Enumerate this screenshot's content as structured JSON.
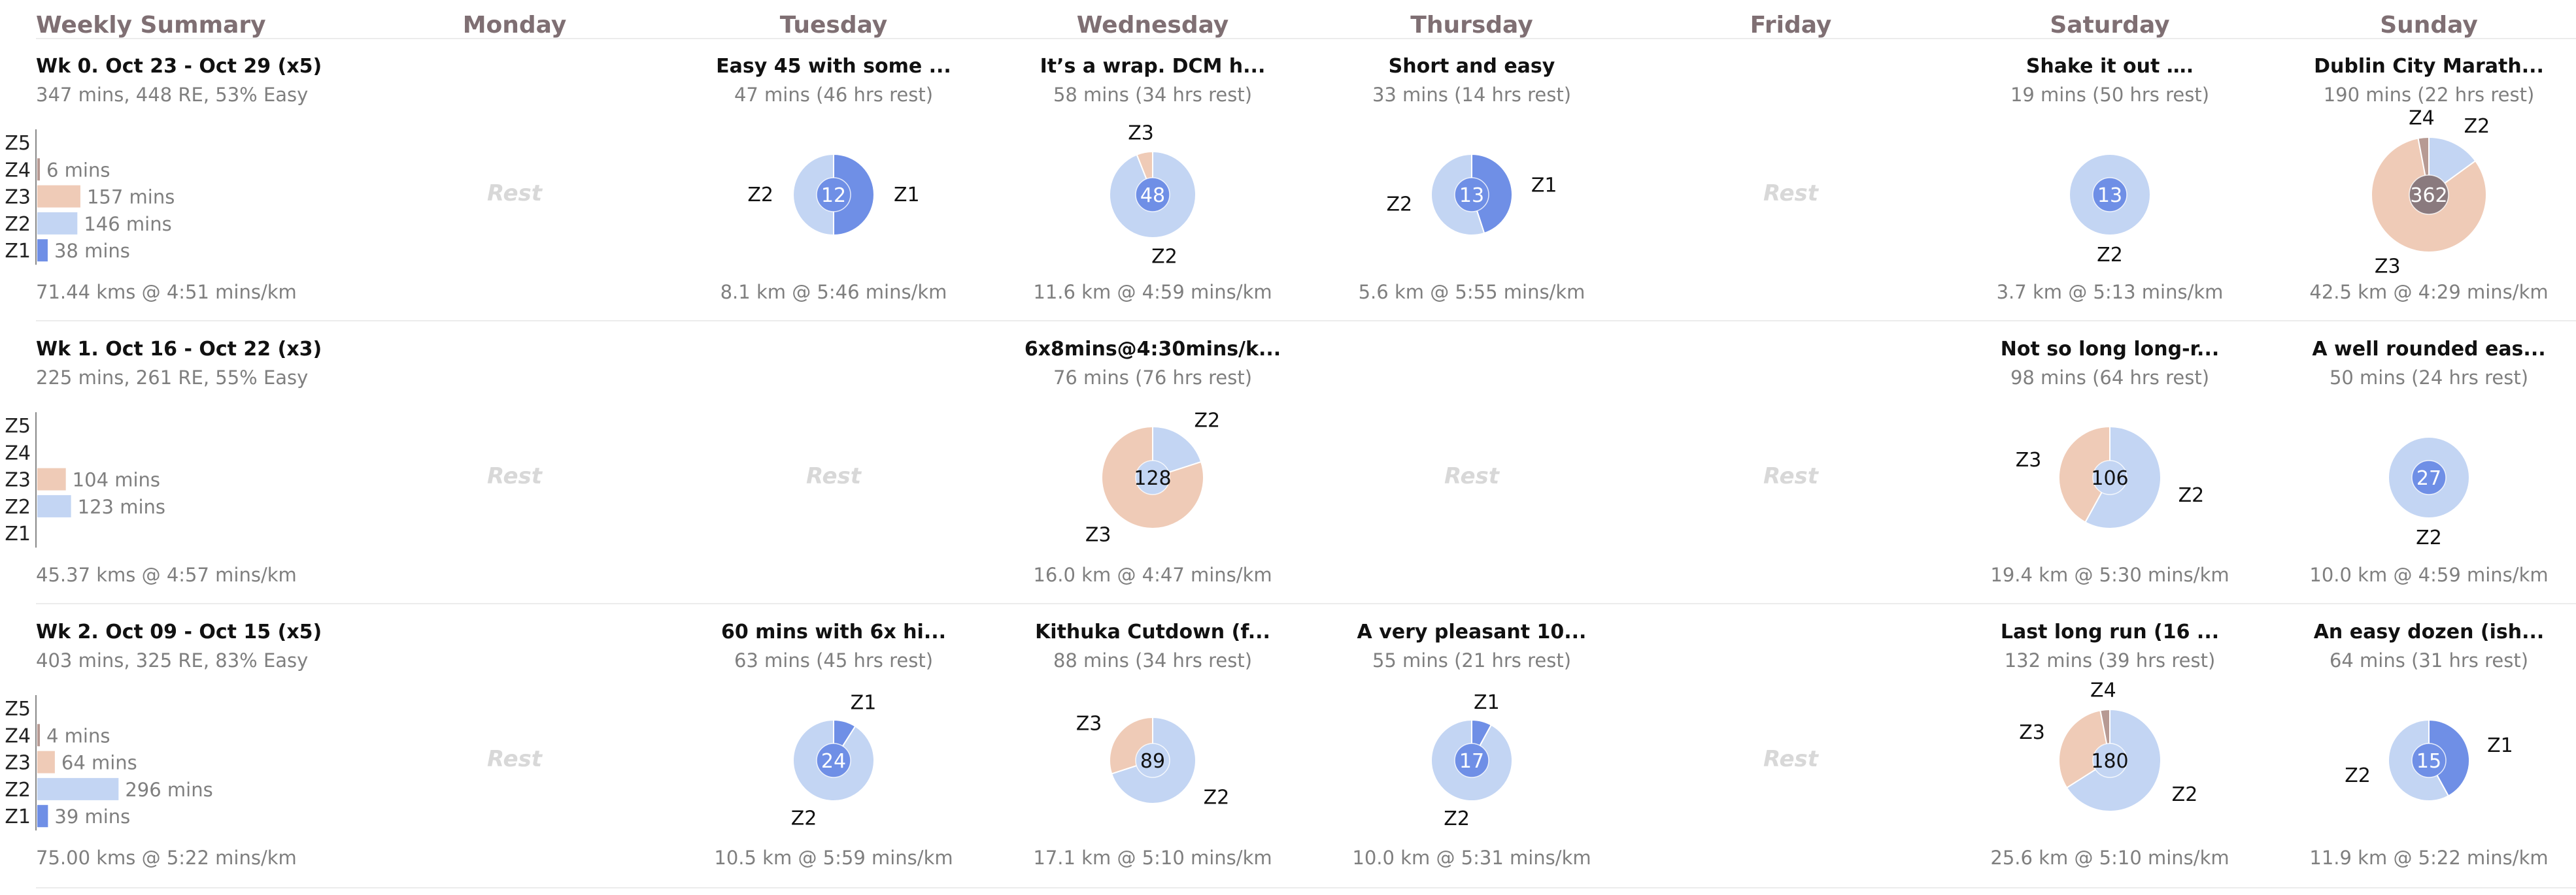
{
  "header": {
    "summary": "Weekly Summary",
    "days": [
      "Monday",
      "Tuesday",
      "Wednesday",
      "Thursday",
      "Friday",
      "Saturday",
      "Sunday"
    ]
  },
  "rest_label": "Rest",
  "zone_colors": {
    "Z1": "#6f8fe6",
    "Z2": "#c3d5f3",
    "Z3": "#efcbb7",
    "Z4": "#b79a93",
    "Z5": "#8a7a7e"
  },
  "chart_data": {
    "type": "pie",
    "weeks": [
      {
        "summary": {
          "title": "Wk 0. Oct 23 - Oct 29 (x5)",
          "subtitle": "347 mins, 448 RE, 53% Easy",
          "footer": "71.44 kms @ 4:51 mins/km",
          "zones": [
            {
              "zone": "Z5",
              "mins": null,
              "label": ""
            },
            {
              "zone": "Z4",
              "mins": 6,
              "label": "6 mins"
            },
            {
              "zone": "Z3",
              "mins": 157,
              "label": "157 mins"
            },
            {
              "zone": "Z2",
              "mins": 146,
              "label": "146 mins"
            },
            {
              "zone": "Z1",
              "mins": 38,
              "label": "38 mins"
            }
          ]
        },
        "days": [
          {
            "rest": true
          },
          {
            "rest": false,
            "title": "Easy 45 with some ...",
            "subtitle": "47 mins (46 hrs rest)",
            "footer": "8.1 km @ 5:46 mins/km",
            "center": "12",
            "center_color": "#6f8fe6",
            "slices": [
              {
                "zone": "Z1",
                "value": 0.5,
                "label": "Z1"
              },
              {
                "zone": "Z2",
                "value": 0.5,
                "label": "Z2"
              }
            ]
          },
          {
            "rest": false,
            "title": "It’s a wrap. DCM h...",
            "subtitle": "58 mins (34 hrs rest)",
            "footer": "11.6 km @ 4:59 mins/km",
            "center": "48",
            "center_color": "#6f8fe6",
            "slices": [
              {
                "zone": "Z2",
                "value": 0.94,
                "label": "Z2"
              },
              {
                "zone": "Z3",
                "value": 0.06,
                "label": "Z3"
              }
            ]
          },
          {
            "rest": false,
            "title": "Short and easy",
            "subtitle": "33 mins (14 hrs rest)",
            "footer": "5.6 km @ 5:55 mins/km",
            "center": "13",
            "center_color": "#6f8fe6",
            "slices": [
              {
                "zone": "Z1",
                "value": 0.45,
                "label": "Z1"
              },
              {
                "zone": "Z2",
                "value": 0.55,
                "label": "Z2"
              }
            ]
          },
          {
            "rest": true
          },
          {
            "rest": false,
            "title": "Shake it out ….",
            "subtitle": "19 mins (50 hrs rest)",
            "footer": "3.7 km @ 5:13 mins/km",
            "center": "13",
            "center_color": "#6f8fe6",
            "slices": [
              {
                "zone": "Z2",
                "value": 1.0,
                "label": "Z2"
              }
            ]
          },
          {
            "rest": false,
            "title": "Dublin City Marath...",
            "subtitle": "190 mins (22 hrs rest)",
            "footer": "42.5 km @ 4:29 mins/km",
            "center": "362",
            "center_color": "#8a7a7e",
            "slices": [
              {
                "zone": "Z2",
                "value": 0.15,
                "label": "Z2"
              },
              {
                "zone": "Z3",
                "value": 0.82,
                "label": "Z3"
              },
              {
                "zone": "Z4",
                "value": 0.03,
                "label": "Z4"
              }
            ]
          }
        ]
      },
      {
        "summary": {
          "title": "Wk 1. Oct 16 - Oct 22 (x3)",
          "subtitle": "225 mins, 261 RE, 55% Easy",
          "footer": "45.37 kms @ 4:57 mins/km",
          "zones": [
            {
              "zone": "Z5",
              "mins": null,
              "label": ""
            },
            {
              "zone": "Z4",
              "mins": null,
              "label": ""
            },
            {
              "zone": "Z3",
              "mins": 104,
              "label": "104 mins"
            },
            {
              "zone": "Z2",
              "mins": 123,
              "label": "123 mins"
            },
            {
              "zone": "Z1",
              "mins": null,
              "label": ""
            }
          ]
        },
        "days": [
          {
            "rest": true
          },
          {
            "rest": true
          },
          {
            "rest": false,
            "title": "6x8mins@4:30mins/k...",
            "subtitle": "76 mins (76 hrs rest)",
            "footer": "16.0 km @ 4:47 mins/km",
            "center": "128",
            "center_color": "#c3d5f3",
            "slices": [
              {
                "zone": "Z2",
                "value": 0.2,
                "label": "Z2"
              },
              {
                "zone": "Z3",
                "value": 0.8,
                "label": "Z3"
              }
            ]
          },
          {
            "rest": true
          },
          {
            "rest": true
          },
          {
            "rest": false,
            "title": "Not so long long-r...",
            "subtitle": "98 mins (64 hrs rest)",
            "footer": "19.4 km @ 5:30 mins/km",
            "center": "106",
            "center_color": "#c3d5f3",
            "slices": [
              {
                "zone": "Z2",
                "value": 0.58,
                "label": "Z2"
              },
              {
                "zone": "Z3",
                "value": 0.42,
                "label": "Z3"
              }
            ]
          },
          {
            "rest": false,
            "title": "A well rounded eas...",
            "subtitle": "50 mins (24 hrs rest)",
            "footer": "10.0 km @ 4:59 mins/km",
            "center": "27",
            "center_color": "#6f8fe6",
            "slices": [
              {
                "zone": "Z2",
                "value": 1.0,
                "label": "Z2"
              }
            ]
          }
        ]
      },
      {
        "summary": {
          "title": "Wk 2. Oct 09 - Oct 15 (x5)",
          "subtitle": "403 mins, 325 RE, 83% Easy",
          "footer": "75.00 kms @ 5:22 mins/km",
          "zones": [
            {
              "zone": "Z5",
              "mins": null,
              "label": ""
            },
            {
              "zone": "Z4",
              "mins": 4,
              "label": "4 mins"
            },
            {
              "zone": "Z3",
              "mins": 64,
              "label": "64 mins"
            },
            {
              "zone": "Z2",
              "mins": 296,
              "label": "296 mins"
            },
            {
              "zone": "Z1",
              "mins": 39,
              "label": "39 mins"
            }
          ]
        },
        "days": [
          {
            "rest": true
          },
          {
            "rest": false,
            "title": "60 mins with 6x hi...",
            "subtitle": "63 mins (45 hrs rest)",
            "footer": "10.5 km @ 5:59 mins/km",
            "center": "24",
            "center_color": "#6f8fe6",
            "slices": [
              {
                "zone": "Z1",
                "value": 0.09,
                "label": "Z1"
              },
              {
                "zone": "Z2",
                "value": 0.91,
                "label": "Z2"
              }
            ]
          },
          {
            "rest": false,
            "title": "Kithuka Cutdown (f...",
            "subtitle": "88 mins (34 hrs rest)",
            "footer": "17.1 km @ 5:10 mins/km",
            "center": "89",
            "center_color": "#c3d5f3",
            "slices": [
              {
                "zone": "Z2",
                "value": 0.7,
                "label": "Z2"
              },
              {
                "zone": "Z3",
                "value": 0.3,
                "label": "Z3"
              }
            ]
          },
          {
            "rest": false,
            "title": "A very pleasant 10...",
            "subtitle": "55 mins (21 hrs rest)",
            "footer": "10.0 km @ 5:31 mins/km",
            "center": "17",
            "center_color": "#6f8fe6",
            "slices": [
              {
                "zone": "Z1",
                "value": 0.08,
                "label": "Z1"
              },
              {
                "zone": "Z2",
                "value": 0.92,
                "label": "Z2"
              }
            ]
          },
          {
            "rest": true
          },
          {
            "rest": false,
            "title": "Last long run (16 ...",
            "subtitle": "132 mins (39 hrs rest)",
            "footer": "25.6 km @ 5:10 mins/km",
            "center": "180",
            "center_color": "#c3d5f3",
            "slices": [
              {
                "zone": "Z2",
                "value": 0.66,
                "label": "Z2"
              },
              {
                "zone": "Z3",
                "value": 0.31,
                "label": "Z3"
              },
              {
                "zone": "Z4",
                "value": 0.03,
                "label": "Z4"
              }
            ]
          },
          {
            "rest": false,
            "title": "An easy dozen (ish...",
            "subtitle": "64 mins (31 hrs rest)",
            "footer": "11.9 km @ 5:22 mins/km",
            "center": "15",
            "center_color": "#6f8fe6",
            "slices": [
              {
                "zone": "Z1",
                "value": 0.42,
                "label": "Z1"
              },
              {
                "zone": "Z2",
                "value": 0.58,
                "label": "Z2"
              }
            ]
          }
        ]
      }
    ]
  }
}
